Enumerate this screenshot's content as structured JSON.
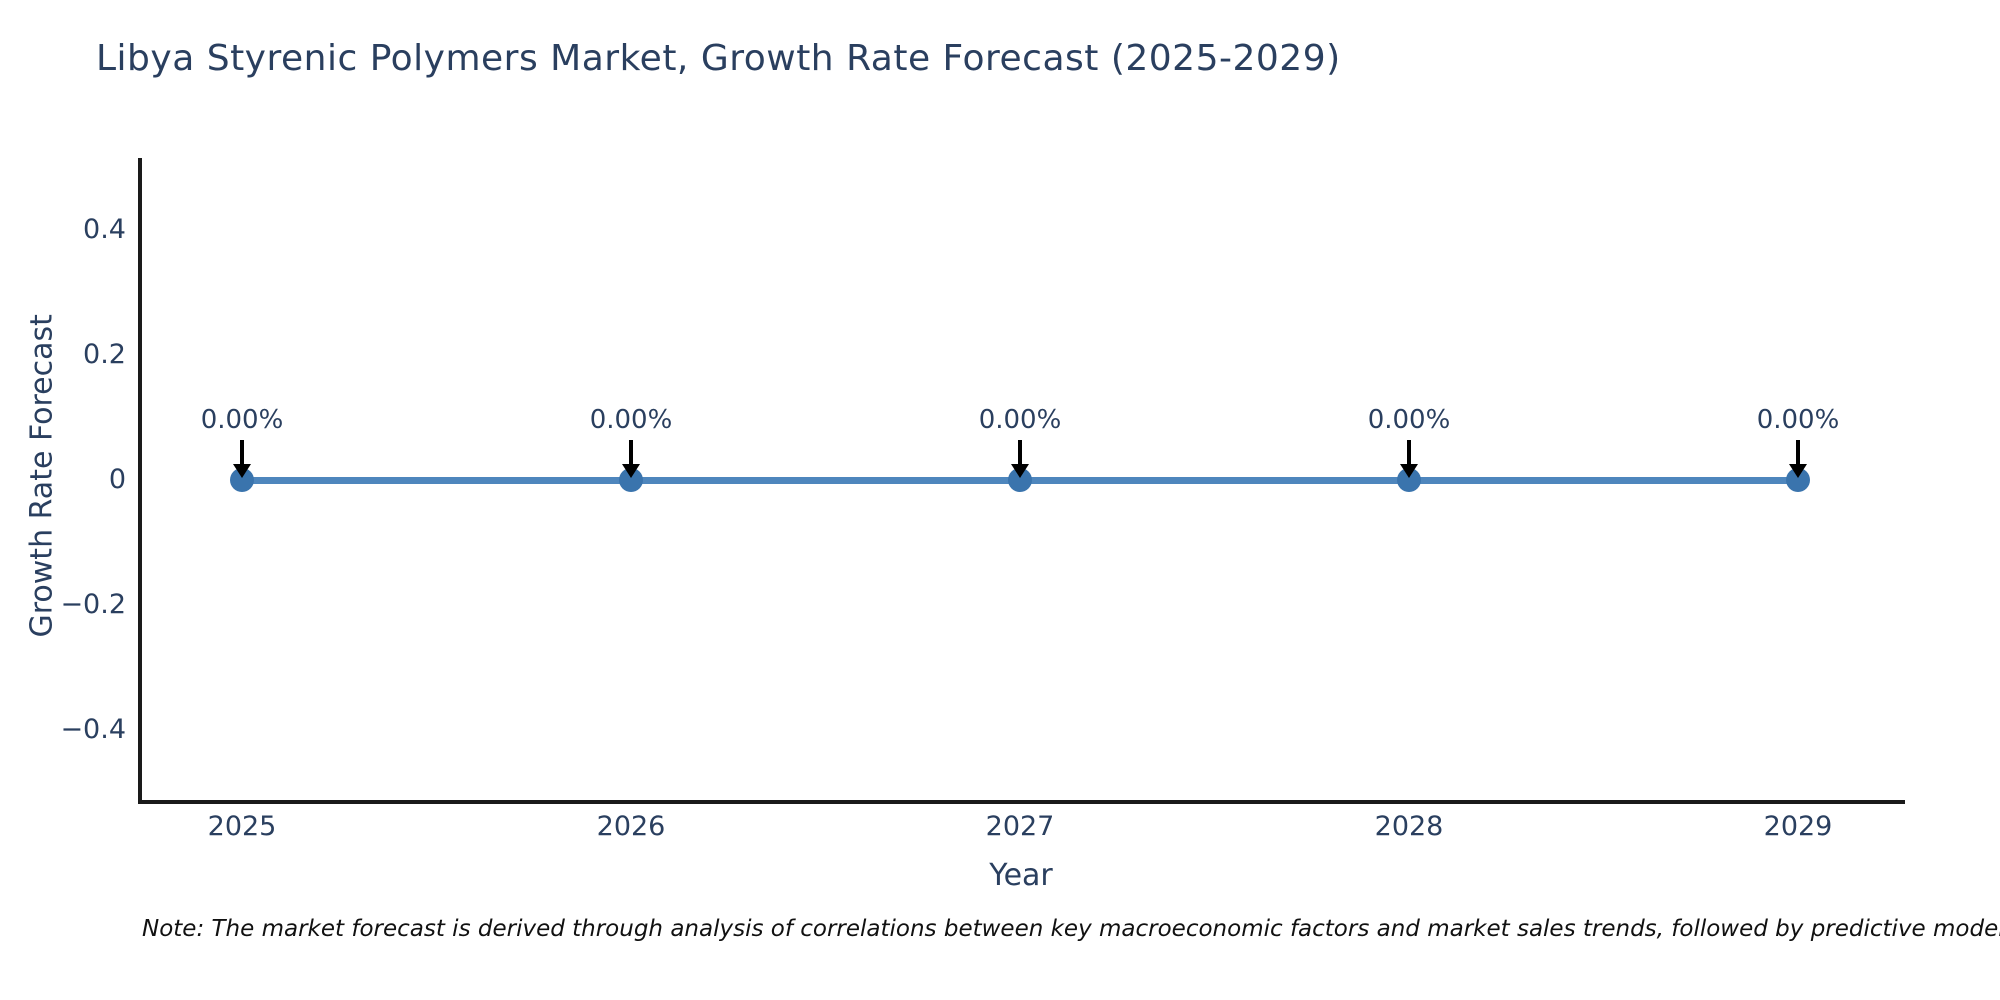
{
  "title": "Libya Styrenic Polymers Market, Growth Rate Forecast (2025-2029)",
  "note": "Note: The market forecast is derived through analysis of correlations between key macroeconomic factors and market sales trends, followed by predictive modeling to project future sales.",
  "chart_data": {
    "type": "line",
    "title": "Libya Styrenic Polymers Market, Growth Rate Forecast (2025-2029)",
    "xlabel": "Year",
    "ylabel": "Growth Rate Forecast",
    "x": [
      2025,
      2026,
      2027,
      2028,
      2029
    ],
    "values": [
      0,
      0,
      0,
      0,
      0
    ],
    "point_labels": [
      "0.00%",
      "0.00%",
      "0.00%",
      "0.00%",
      "0.00%"
    ],
    "x_tick_labels": [
      "2025",
      "2026",
      "2027",
      "2028",
      "2029"
    ],
    "y_ticks": [
      0.4,
      0.2,
      0,
      -0.2,
      -0.4
    ],
    "y_tick_labels": [
      "0.4",
      "0.2",
      "0",
      "−0.2",
      "−0.4"
    ],
    "xlim": [
      2024.75,
      2029.27
    ],
    "ylim": [
      -0.512,
      0.512
    ],
    "grid": false,
    "legend": false,
    "colors": {
      "line": "#4e86bd",
      "marker": "#3a74ad",
      "axis": "#1a1a1a",
      "text": "#2a3f5f",
      "annotation_arrow": "#000000",
      "background": "#ffffff"
    }
  }
}
